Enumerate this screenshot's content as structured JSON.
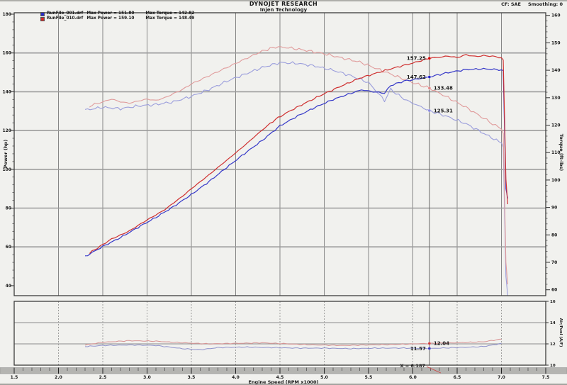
{
  "header": {
    "title": "DYNOJET RESEARCH",
    "subtitle": "Injen Technology",
    "correction": "CF: SAE",
    "smoothing": "Smoothing: 0"
  },
  "legend": [
    {
      "file": "RunFile_001.drf",
      "max_power": "Max Power = 151.80",
      "max_torque": "Max Torque = 142.82",
      "color": "#2a2ec4"
    },
    {
      "file": "RunFile_010.drf",
      "max_power": "Max Power = 159.10",
      "max_torque": "Max Torque = 148.49",
      "color": "#d42a2a"
    }
  ],
  "axes": {
    "x_title": "Engine Speed (RPM x1000)",
    "x_ticks": [
      "1.5",
      "2.0",
      "2.5",
      "3.0",
      "3.5",
      "4.0",
      "4.5",
      "5.0",
      "5.5",
      "6.0",
      "6.5",
      "7.0",
      "7.5"
    ],
    "power_title": "Power (hp)",
    "power_ticks": [
      "180",
      "160",
      "140",
      "120",
      "100",
      "80",
      "60",
      "40"
    ],
    "torque_title": "Torque (ft-lbs)",
    "torque_ticks": [
      "160",
      "150",
      "140",
      "130",
      "120",
      "110",
      "100",
      "90",
      "80",
      "70",
      "60"
    ],
    "afr_title": "Air/Fuel (A/F)",
    "afr_ticks": [
      "16",
      "14",
      "12",
      "10"
    ]
  },
  "cursor": {
    "label": "X = 6.187",
    "rpm": 6.187,
    "readouts": [
      {
        "value": "157.25",
        "series": "run2_power",
        "side": "left",
        "dot_color": "#d40000"
      },
      {
        "value": "147.62",
        "series": "run1_power",
        "side": "left",
        "dot_color": "#2222cc"
      },
      {
        "value": "133.48",
        "series": "run2_torque",
        "side": "right",
        "dot_color": "#e08888"
      },
      {
        "value": "125.31",
        "series": "run1_torque",
        "side": "right",
        "dot_color": "#8c8ce0"
      },
      {
        "value": "12.04",
        "series": "run2_afr",
        "side": "right",
        "dot_color": "#cc3a3a"
      },
      {
        "value": "11.57",
        "series": "run1_afr",
        "side": "left",
        "dot_color": "#3a3ab8"
      }
    ]
  },
  "chart_data": [
    {
      "type": "line",
      "title": "Power and torque vs engine speed",
      "x_axis": {
        "label": "Engine Speed (RPM x1000)",
        "range": [
          1.5,
          7.5
        ],
        "tick_step": 0.5,
        "grid": true
      },
      "y_left": {
        "label": "Power (hp)",
        "range": [
          34.8,
          180.7
        ],
        "ticks": [
          180,
          160,
          140,
          120,
          100,
          80,
          60,
          40
        ]
      },
      "y_right": {
        "label": "Torque (ft-lbs)",
        "range": [
          57.8,
          161.0
        ],
        "ticks": [
          160,
          150,
          140,
          130,
          120,
          110,
          100,
          90,
          80,
          70,
          60
        ]
      },
      "legend_position": "top-left",
      "series": [
        {
          "id": "run1_power",
          "name": "RunFile_001.drf Power (hp)",
          "axis": "left",
          "color": "#3538c8",
          "max": 151.8,
          "points": [
            [
              2.3,
              55
            ],
            [
              2.5,
              60.2
            ],
            [
              2.7,
              64.8
            ],
            [
              2.9,
              70.1
            ],
            [
              3.1,
              75.2
            ],
            [
              3.3,
              80.8
            ],
            [
              3.5,
              87
            ],
            [
              3.7,
              93.7
            ],
            [
              3.9,
              101
            ],
            [
              4.1,
              108.1
            ],
            [
              4.3,
              114.9
            ],
            [
              4.5,
              122.4
            ],
            [
              4.7,
              127.5
            ],
            [
              4.9,
              132
            ],
            [
              5.1,
              136
            ],
            [
              5.3,
              139.2
            ],
            [
              5.42,
              141
            ],
            [
              5.55,
              140
            ],
            [
              5.68,
              139.3
            ],
            [
              5.75,
              143.2
            ],
            [
              5.9,
              145.5
            ],
            [
              6.0,
              146.2
            ],
            [
              6.187,
              147.62
            ],
            [
              6.4,
              149.9
            ],
            [
              6.6,
              151.4
            ],
            [
              6.8,
              151.8
            ],
            [
              7.0,
              151.3
            ],
            [
              7.02,
              150.9
            ],
            [
              7.05,
              90
            ],
            [
              7.07,
              85
            ]
          ]
        },
        {
          "id": "run2_power",
          "name": "RunFile_010.drf Power (hp)",
          "axis": "left",
          "color": "#cf3030",
          "max": 159.1,
          "points": [
            [
              2.35,
              56.8
            ],
            [
              2.5,
              61.2
            ],
            [
              2.6,
              64.1
            ],
            [
              2.7,
              66.1
            ],
            [
              2.8,
              68.2
            ],
            [
              2.9,
              71.1
            ],
            [
              3.0,
              73.9
            ],
            [
              3.1,
              76.5
            ],
            [
              3.2,
              79.2
            ],
            [
              3.3,
              82.7
            ],
            [
              3.4,
              86.1
            ],
            [
              3.5,
              90
            ],
            [
              3.6,
              93.6
            ],
            [
              3.7,
              97.2
            ],
            [
              3.8,
              101
            ],
            [
              3.9,
              104.7
            ],
            [
              4.0,
              108.5
            ],
            [
              4.1,
              112.3
            ],
            [
              4.2,
              116.3
            ],
            [
              4.3,
              120.3
            ],
            [
              4.45,
              125.8
            ],
            [
              4.6,
              129.8
            ],
            [
              4.8,
              134.5
            ],
            [
              5.0,
              139
            ],
            [
              5.2,
              143.1
            ],
            [
              5.4,
              147
            ],
            [
              5.6,
              149.8
            ],
            [
              5.8,
              152.4
            ],
            [
              6.0,
              154.8
            ],
            [
              6.187,
              157.25
            ],
            [
              6.3,
              157.8
            ],
            [
              6.4,
              158.4
            ],
            [
              6.5,
              157.6
            ],
            [
              6.6,
              159.1
            ],
            [
              6.7,
              158.2
            ],
            [
              6.8,
              158.6
            ],
            [
              6.9,
              158.3
            ],
            [
              7.0,
              157.5
            ],
            [
              7.02,
              156.4
            ],
            [
              7.05,
              95
            ],
            [
              7.07,
              82
            ]
          ]
        },
        {
          "id": "run1_torque",
          "name": "RunFile_001.drf Torque (ft-lbs)",
          "axis": "right",
          "color": "#9b9edc",
          "max": 142.82,
          "points": [
            [
              2.3,
              125.5
            ],
            [
              2.5,
              126.5
            ],
            [
              2.7,
              126
            ],
            [
              2.9,
              127
            ],
            [
              3.1,
              127.5
            ],
            [
              3.3,
              128.5
            ],
            [
              3.5,
              130.5
            ],
            [
              3.7,
              133
            ],
            [
              3.9,
              136
            ],
            [
              4.1,
              138.5
            ],
            [
              4.3,
              141
            ],
            [
              4.5,
              142.8
            ],
            [
              4.7,
              142.5
            ],
            [
              4.9,
              141.5
            ],
            [
              5.1,
              140
            ],
            [
              5.3,
              138
            ],
            [
              5.5,
              135.5
            ],
            [
              5.68,
              129
            ],
            [
              5.75,
              133
            ],
            [
              5.9,
              129.5
            ],
            [
              6.0,
              128
            ],
            [
              6.187,
              125.3
            ],
            [
              6.4,
              123
            ],
            [
              6.6,
              120.5
            ],
            [
              6.8,
              117
            ],
            [
              7.0,
              113.5
            ],
            [
              7.02,
              112
            ],
            [
              7.05,
              65
            ],
            [
              7.07,
              58
            ]
          ]
        },
        {
          "id": "run2_torque",
          "name": "RunFile_010.drf Torque (ft-lbs)",
          "axis": "right",
          "color": "#e09b9b",
          "max": 148.49,
          "points": [
            [
              2.35,
              127
            ],
            [
              2.5,
              128.5
            ],
            [
              2.6,
              129.5
            ],
            [
              2.7,
              128.5
            ],
            [
              2.8,
              128
            ],
            [
              2.9,
              128.8
            ],
            [
              3.0,
              129.5
            ],
            [
              3.1,
              129
            ],
            [
              3.2,
              130
            ],
            [
              3.3,
              131.5
            ],
            [
              3.4,
              133
            ],
            [
              3.5,
              135
            ],
            [
              3.6,
              136.5
            ],
            [
              3.7,
              138
            ],
            [
              3.8,
              139.5
            ],
            [
              3.9,
              141
            ],
            [
              4.0,
              142.5
            ],
            [
              4.1,
              144
            ],
            [
              4.2,
              145.5
            ],
            [
              4.3,
              147
            ],
            [
              4.45,
              148.5
            ],
            [
              4.6,
              148.2
            ],
            [
              4.8,
              147.2
            ],
            [
              5.0,
              146
            ],
            [
              5.2,
              144.5
            ],
            [
              5.4,
              143
            ],
            [
              5.6,
              140.5
            ],
            [
              5.8,
              138
            ],
            [
              6.0,
              135.5
            ],
            [
              6.187,
              133.5
            ],
            [
              6.4,
              130
            ],
            [
              6.6,
              126.5
            ],
            [
              6.8,
              122.5
            ],
            [
              6.9,
              120.5
            ],
            [
              7.0,
              118.5
            ],
            [
              7.02,
              117
            ],
            [
              7.05,
              70
            ],
            [
              7.07,
              62
            ]
          ]
        }
      ]
    },
    {
      "type": "line",
      "title": "Air/Fuel ratio vs engine speed",
      "x_axis": {
        "label": "Engine Speed (RPM x1000)",
        "range": [
          1.5,
          7.5
        ],
        "tick_step": 0.5,
        "grid": "dashed"
      },
      "y": {
        "label": "Air/Fuel (A/F)",
        "range": [
          10,
          16
        ],
        "ticks": [
          16,
          14,
          12,
          10
        ]
      },
      "series": [
        {
          "id": "run1_afr",
          "name": "RunFile_001.drf A/F",
          "color": "#8f92cc",
          "points": [
            [
              2.3,
              11.75
            ],
            [
              2.5,
              11.85
            ],
            [
              2.8,
              11.9
            ],
            [
              3.1,
              11.85
            ],
            [
              3.4,
              11.55
            ],
            [
              3.6,
              11.45
            ],
            [
              3.8,
              11.65
            ],
            [
              4.1,
              11.7
            ],
            [
              4.4,
              11.65
            ],
            [
              4.7,
              11.6
            ],
            [
              5.0,
              11.6
            ],
            [
              5.3,
              11.55
            ],
            [
              5.6,
              11.6
            ],
            [
              5.9,
              11.6
            ],
            [
              6.187,
              11.57
            ],
            [
              6.5,
              11.65
            ],
            [
              6.8,
              11.75
            ],
            [
              7.0,
              12.05
            ]
          ]
        },
        {
          "id": "run2_afr",
          "name": "RunFile_010.drf A/F",
          "color": "#d89292",
          "points": [
            [
              2.3,
              11.9
            ],
            [
              2.5,
              12.15
            ],
            [
              2.8,
              12.3
            ],
            [
              3.1,
              12.25
            ],
            [
              3.4,
              12.1
            ],
            [
              3.7,
              12.0
            ],
            [
              4.0,
              12.05
            ],
            [
              4.3,
              12.1
            ],
            [
              4.6,
              12.0
            ],
            [
              4.9,
              11.9
            ],
            [
              5.2,
              11.85
            ],
            [
              5.5,
              11.9
            ],
            [
              5.8,
              11.95
            ],
            [
              6.0,
              12.0
            ],
            [
              6.187,
              12.04
            ],
            [
              6.5,
              12.1
            ],
            [
              6.8,
              12.2
            ],
            [
              7.0,
              12.45
            ]
          ]
        }
      ]
    }
  ]
}
